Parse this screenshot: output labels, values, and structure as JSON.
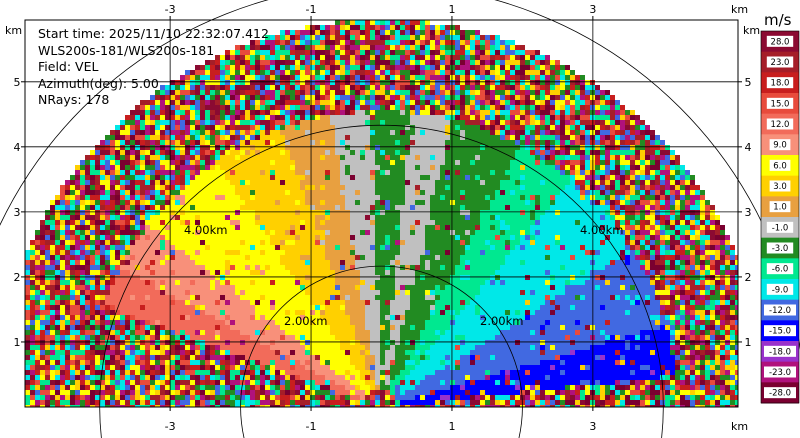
{
  "info": {
    "start_time": "Start time: 2025/11/10 22:32:07.412",
    "instrument": "WLS200s-181/WLS200s-181",
    "field": "Field: VEL",
    "azimuth": "Azimuth(deg): 5.00",
    "nrays": "NRays: 178"
  },
  "axes": {
    "unit": "km",
    "x_ticks": [
      -3,
      -1,
      1,
      3
    ],
    "y_ticks": [
      1,
      2,
      3,
      4,
      5
    ],
    "xlim": [
      -5.06,
      5.06
    ],
    "ylim": [
      0,
      5.95
    ]
  },
  "range_rings": {
    "labels": [
      "2.00km",
      "4.00km"
    ],
    "radii_km": [
      2,
      4,
      6
    ]
  },
  "colorbar": {
    "unit": "m/s",
    "labels": [
      "28.0",
      "23.0",
      "18.0",
      "15.0",
      "12.0",
      "9.0",
      "6.0",
      "3.0",
      "1.0",
      "-1.0",
      "-3.0",
      "-6.0",
      "-9.0",
      "-12.0",
      "-15.0",
      "-18.0",
      "-23.0",
      "-28.0"
    ],
    "colors": [
      "#8B0A32",
      "#A51E28",
      "#C81E1E",
      "#E84B3C",
      "#F26B5A",
      "#F8907A",
      "#FFFF00",
      "#FFD000",
      "#E8A040",
      "#C0C0C0",
      "#228B22",
      "#00E890",
      "#00E8E8",
      "#4169E1",
      "#0000FF",
      "#9932CC",
      "#B0127C",
      "#7A0030"
    ]
  }
}
